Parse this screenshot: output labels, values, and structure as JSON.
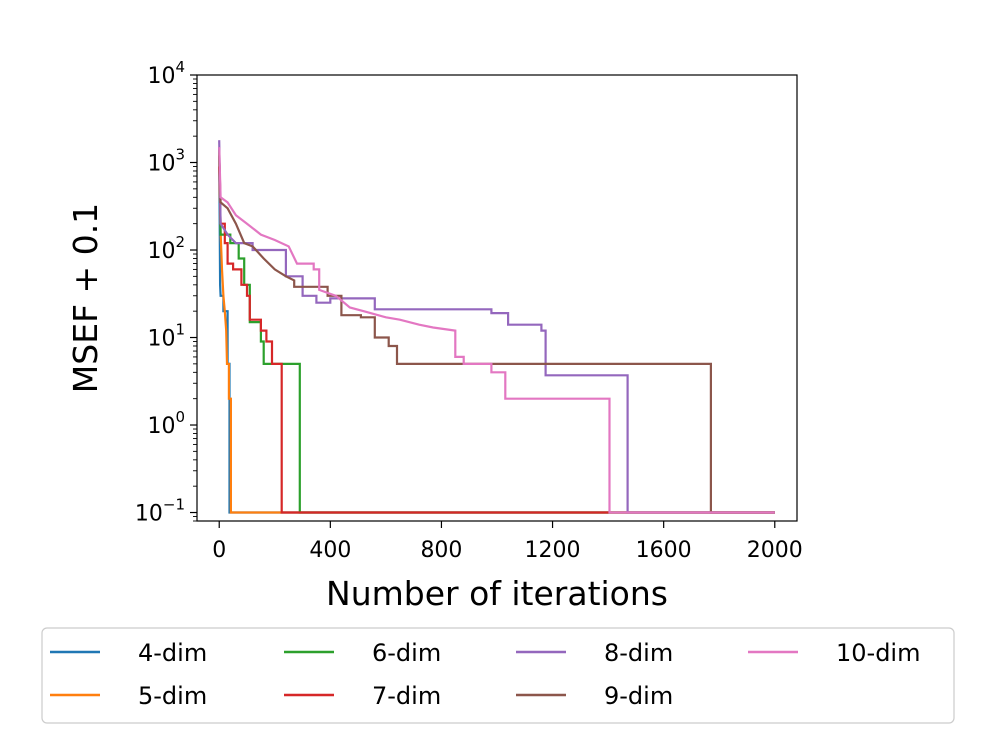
{
  "chart_data": {
    "type": "line",
    "xlabel": "Number of iterations",
    "ylabel": "MSEF + 0.1",
    "yscale": "log",
    "xlim": [
      -80,
      2080
    ],
    "ylim": [
      0.08,
      10000
    ],
    "xticks": [
      {
        "value": 0,
        "label": "0"
      },
      {
        "value": 400,
        "label": "400"
      },
      {
        "value": 800,
        "label": "800"
      },
      {
        "value": 1200,
        "label": "1200"
      },
      {
        "value": 1600,
        "label": "1600"
      },
      {
        "value": 2000,
        "label": "2000"
      }
    ],
    "yticks": [
      {
        "value": 0.1,
        "base": "10",
        "exp": "−1"
      },
      {
        "value": 1,
        "base": "10",
        "exp": "0"
      },
      {
        "value": 10,
        "base": "10",
        "exp": "1"
      },
      {
        "value": 100,
        "base": "10",
        "exp": "2"
      },
      {
        "value": 1000,
        "base": "10",
        "exp": "3"
      },
      {
        "value": 10000,
        "base": "10",
        "exp": "4"
      }
    ],
    "legend_position": "bottom",
    "series": [
      {
        "name": "4-dim",
        "color": "#1f77b4",
        "points": [
          [
            0,
            1500
          ],
          [
            3,
            40
          ],
          [
            5,
            30
          ],
          [
            15,
            30
          ],
          [
            15,
            20
          ],
          [
            30,
            20
          ],
          [
            30,
            5
          ],
          [
            37,
            5
          ],
          [
            37,
            0.1
          ],
          [
            2000,
            0.1
          ]
        ]
      },
      {
        "name": "5-dim",
        "color": "#ff7f0e",
        "points": [
          [
            0,
            1300
          ],
          [
            5,
            160
          ],
          [
            10,
            60
          ],
          [
            15,
            30
          ],
          [
            20,
            20
          ],
          [
            25,
            12
          ],
          [
            28,
            5
          ],
          [
            35,
            5
          ],
          [
            35,
            2
          ],
          [
            42,
            2
          ],
          [
            42,
            0.1
          ],
          [
            2000,
            0.1
          ]
        ]
      },
      {
        "name": "6-dim",
        "color": "#2ca02c",
        "points": [
          [
            0,
            1400
          ],
          [
            5,
            150
          ],
          [
            40,
            150
          ],
          [
            40,
            120
          ],
          [
            70,
            120
          ],
          [
            70,
            80
          ],
          [
            90,
            80
          ],
          [
            90,
            40
          ],
          [
            110,
            40
          ],
          [
            110,
            15
          ],
          [
            150,
            15
          ],
          [
            150,
            9
          ],
          [
            160,
            9
          ],
          [
            160,
            5
          ],
          [
            290,
            5
          ],
          [
            290,
            0.1
          ],
          [
            2000,
            0.1
          ]
        ]
      },
      {
        "name": "7-dim",
        "color": "#d62728",
        "points": [
          [
            0,
            900
          ],
          [
            5,
            200
          ],
          [
            20,
            200
          ],
          [
            20,
            120
          ],
          [
            30,
            120
          ],
          [
            30,
            70
          ],
          [
            50,
            70
          ],
          [
            50,
            60
          ],
          [
            80,
            60
          ],
          [
            80,
            40
          ],
          [
            100,
            40
          ],
          [
            100,
            30
          ],
          [
            110,
            30
          ],
          [
            110,
            16
          ],
          [
            150,
            16
          ],
          [
            150,
            12
          ],
          [
            170,
            12
          ],
          [
            170,
            9
          ],
          [
            190,
            9
          ],
          [
            190,
            5
          ],
          [
            225,
            5
          ],
          [
            225,
            0.1
          ],
          [
            2000,
            0.1
          ]
        ]
      },
      {
        "name": "8-dim",
        "color": "#9467bd",
        "points": [
          [
            0,
            1800
          ],
          [
            5,
            200
          ],
          [
            30,
            150
          ],
          [
            60,
            120
          ],
          [
            120,
            120
          ],
          [
            120,
            100
          ],
          [
            240,
            100
          ],
          [
            240,
            50
          ],
          [
            300,
            50
          ],
          [
            300,
            30
          ],
          [
            350,
            30
          ],
          [
            350,
            25
          ],
          [
            400,
            25
          ],
          [
            400,
            28
          ],
          [
            560,
            28
          ],
          [
            560,
            21
          ],
          [
            980,
            21
          ],
          [
            980,
            19
          ],
          [
            1040,
            19
          ],
          [
            1040,
            14
          ],
          [
            1160,
            14
          ],
          [
            1160,
            12
          ],
          [
            1175,
            12
          ],
          [
            1175,
            3.7
          ],
          [
            1470,
            3.7
          ],
          [
            1470,
            0.1
          ],
          [
            2000,
            0.1
          ]
        ]
      },
      {
        "name": "9-dim",
        "color": "#8c564b",
        "points": [
          [
            0,
            1200
          ],
          [
            5,
            350
          ],
          [
            30,
            300
          ],
          [
            60,
            200
          ],
          [
            90,
            120
          ],
          [
            120,
            110
          ],
          [
            160,
            80
          ],
          [
            200,
            60
          ],
          [
            240,
            50
          ],
          [
            270,
            45
          ],
          [
            270,
            38
          ],
          [
            390,
            38
          ],
          [
            390,
            30
          ],
          [
            440,
            30
          ],
          [
            440,
            18
          ],
          [
            510,
            18
          ],
          [
            510,
            17
          ],
          [
            560,
            17
          ],
          [
            560,
            10
          ],
          [
            610,
            10
          ],
          [
            610,
            8
          ],
          [
            640,
            8
          ],
          [
            640,
            5
          ],
          [
            1770,
            5
          ],
          [
            1770,
            1.1
          ],
          [
            1770,
            0.1
          ],
          [
            2000,
            0.1
          ]
        ]
      },
      {
        "name": "10-dim",
        "color": "#e377c2",
        "points": [
          [
            0,
            1500
          ],
          [
            5,
            400
          ],
          [
            30,
            350
          ],
          [
            60,
            250
          ],
          [
            100,
            200
          ],
          [
            150,
            150
          ],
          [
            200,
            130
          ],
          [
            250,
            110
          ],
          [
            280,
            70
          ],
          [
            340,
            70
          ],
          [
            340,
            60
          ],
          [
            360,
            60
          ],
          [
            360,
            35
          ],
          [
            420,
            30
          ],
          [
            470,
            22
          ],
          [
            520,
            20
          ],
          [
            600,
            17
          ],
          [
            650,
            16
          ],
          [
            720,
            14
          ],
          [
            770,
            13
          ],
          [
            850,
            12
          ],
          [
            850,
            6
          ],
          [
            880,
            6
          ],
          [
            880,
            5
          ],
          [
            980,
            5
          ],
          [
            980,
            4
          ],
          [
            1030,
            4
          ],
          [
            1030,
            2
          ],
          [
            1405,
            2
          ],
          [
            1405,
            0.1
          ],
          [
            2000,
            0.1
          ]
        ]
      }
    ]
  }
}
